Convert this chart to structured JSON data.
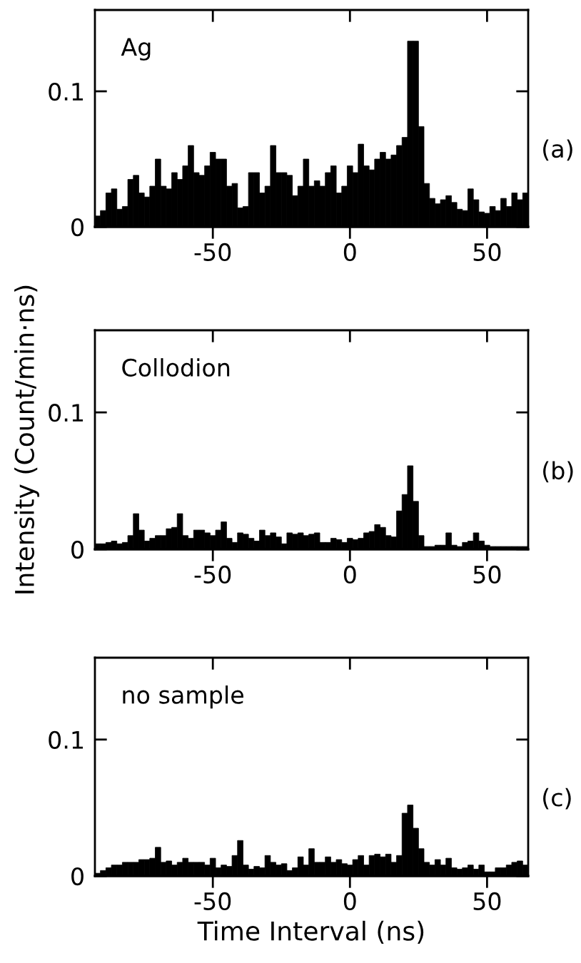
{
  "chart_data": [
    {
      "type": "histogram",
      "color": "#000000",
      "xlim": [
        -93,
        65
      ],
      "ylim": [
        0,
        0.16
      ],
      "xticks": [
        -50,
        0,
        50
      ],
      "yticks": [
        0,
        0.1
      ],
      "grid": false,
      "legend": false,
      "annotations": [
        "Ag",
        "(a)"
      ],
      "bins": [
        -93,
        -91,
        -89,
        -87,
        -85,
        -83,
        -81,
        -79,
        -77,
        -75,
        -73,
        -71,
        -69,
        -67,
        -65,
        -63,
        -61,
        -59,
        -57,
        -55,
        -53,
        -51,
        -49,
        -47,
        -45,
        -43,
        -41,
        -39,
        -37,
        -35,
        -33,
        -31,
        -29,
        -27,
        -25,
        -23,
        -21,
        -19,
        -17,
        -15,
        -13,
        -11,
        -9,
        -7,
        -5,
        -3,
        -1,
        1,
        3,
        5,
        7,
        9,
        11,
        13,
        15,
        17,
        19,
        21,
        23,
        25,
        27,
        29,
        31,
        33,
        35,
        37,
        39,
        41,
        43,
        45,
        47,
        49,
        51,
        53,
        55,
        57,
        59,
        61,
        63,
        65
      ],
      "values": [
        0.008,
        0.012,
        0.025,
        0.028,
        0.013,
        0.015,
        0.035,
        0.038,
        0.025,
        0.022,
        0.03,
        0.05,
        0.03,
        0.028,
        0.04,
        0.035,
        0.045,
        0.06,
        0.04,
        0.038,
        0.045,
        0.055,
        0.05,
        0.05,
        0.03,
        0.032,
        0.014,
        0.015,
        0.04,
        0.04,
        0.025,
        0.03,
        0.06,
        0.04,
        0.04,
        0.038,
        0.023,
        0.03,
        0.05,
        0.03,
        0.034,
        0.03,
        0.04,
        0.045,
        0.025,
        0.03,
        0.045,
        0.04,
        0.061,
        0.045,
        0.042,
        0.05,
        0.055,
        0.05,
        0.053,
        0.06,
        0.066,
        0.137,
        0.137,
        0.074,
        0.032,
        0.021,
        0.017,
        0.02,
        0.023,
        0.018,
        0.013,
        0.012,
        0.028,
        0.02,
        0.011,
        0.01,
        0.015,
        0.012,
        0.021,
        0.015,
        0.025,
        0.02,
        0.025
      ]
    },
    {
      "type": "histogram",
      "color": "#000000",
      "xlim": [
        -93,
        65
      ],
      "ylim": [
        0,
        0.16
      ],
      "xticks": [
        -50,
        0,
        50
      ],
      "yticks": [
        0,
        0.1
      ],
      "grid": false,
      "legend": false,
      "ylabel": "Intensity (Count/min·ns)",
      "annotations": [
        "Collodion",
        "(b)"
      ],
      "bins": [
        -93,
        -91,
        -89,
        -87,
        -85,
        -83,
        -81,
        -79,
        -77,
        -75,
        -73,
        -71,
        -69,
        -67,
        -65,
        -63,
        -61,
        -59,
        -57,
        -55,
        -53,
        -51,
        -49,
        -47,
        -45,
        -43,
        -41,
        -39,
        -37,
        -35,
        -33,
        -31,
        -29,
        -27,
        -25,
        -23,
        -21,
        -19,
        -17,
        -15,
        -13,
        -11,
        -9,
        -7,
        -5,
        -3,
        -1,
        1,
        3,
        5,
        7,
        9,
        11,
        13,
        15,
        17,
        19,
        21,
        23,
        25,
        27,
        29,
        31,
        33,
        35,
        37,
        39,
        41,
        43,
        45,
        47,
        49,
        51,
        53,
        55,
        57,
        59,
        61,
        63,
        65
      ],
      "values": [
        0.004,
        0.004,
        0.005,
        0.006,
        0.004,
        0.005,
        0.01,
        0.026,
        0.014,
        0.006,
        0.008,
        0.01,
        0.01,
        0.015,
        0.016,
        0.026,
        0.01,
        0.008,
        0.014,
        0.014,
        0.012,
        0.01,
        0.014,
        0.02,
        0.008,
        0.005,
        0.012,
        0.011,
        0.008,
        0.006,
        0.014,
        0.01,
        0.012,
        0.009,
        0.004,
        0.012,
        0.011,
        0.012,
        0.01,
        0.011,
        0.012,
        0.005,
        0.005,
        0.008,
        0.007,
        0.005,
        0.008,
        0.007,
        0.008,
        0.012,
        0.013,
        0.018,
        0.016,
        0.01,
        0.009,
        0.028,
        0.04,
        0.061,
        0.035,
        0.01,
        0.002,
        0.002,
        0.003,
        0.003,
        0.012,
        0.003,
        0.002,
        0.005,
        0.006,
        0.012,
        0.006,
        0.003,
        0.002,
        0.002,
        0.002,
        0.002,
        0.002,
        0.002,
        0.002
      ]
    },
    {
      "type": "histogram",
      "color": "#000000",
      "xlim": [
        -93,
        65
      ],
      "ylim": [
        0,
        0.16
      ],
      "xticks": [
        -50,
        0,
        50
      ],
      "yticks": [
        0,
        0.1
      ],
      "grid": false,
      "legend": false,
      "xlabel": "Time Interval (ns)",
      "annotations": [
        "no sample",
        "(c)"
      ],
      "bins": [
        -93,
        -91,
        -89,
        -87,
        -85,
        -83,
        -81,
        -79,
        -77,
        -75,
        -73,
        -71,
        -69,
        -67,
        -65,
        -63,
        -61,
        -59,
        -57,
        -55,
        -53,
        -51,
        -49,
        -47,
        -45,
        -43,
        -41,
        -39,
        -37,
        -35,
        -33,
        -31,
        -29,
        -27,
        -25,
        -23,
        -21,
        -19,
        -17,
        -15,
        -13,
        -11,
        -9,
        -7,
        -5,
        -3,
        -1,
        1,
        3,
        5,
        7,
        9,
        11,
        13,
        15,
        17,
        19,
        21,
        23,
        25,
        27,
        29,
        31,
        33,
        35,
        37,
        39,
        41,
        43,
        45,
        47,
        49,
        51,
        53,
        55,
        57,
        59,
        61,
        63,
        65
      ],
      "values": [
        0.002,
        0.004,
        0.006,
        0.008,
        0.008,
        0.01,
        0.01,
        0.01,
        0.012,
        0.012,
        0.013,
        0.021,
        0.01,
        0.011,
        0.008,
        0.01,
        0.013,
        0.01,
        0.01,
        0.01,
        0.008,
        0.013,
        0.006,
        0.008,
        0.007,
        0.015,
        0.026,
        0.008,
        0.005,
        0.007,
        0.006,
        0.015,
        0.01,
        0.008,
        0.009,
        0.004,
        0.006,
        0.014,
        0.008,
        0.02,
        0.01,
        0.01,
        0.014,
        0.01,
        0.012,
        0.009,
        0.008,
        0.012,
        0.015,
        0.008,
        0.015,
        0.016,
        0.014,
        0.016,
        0.01,
        0.015,
        0.046,
        0.052,
        0.035,
        0.02,
        0.01,
        0.008,
        0.012,
        0.008,
        0.013,
        0.006,
        0.005,
        0.006,
        0.008,
        0.005,
        0.008,
        0.003,
        0.003,
        0.006,
        0.006,
        0.008,
        0.01,
        0.011,
        0.008
      ]
    }
  ]
}
